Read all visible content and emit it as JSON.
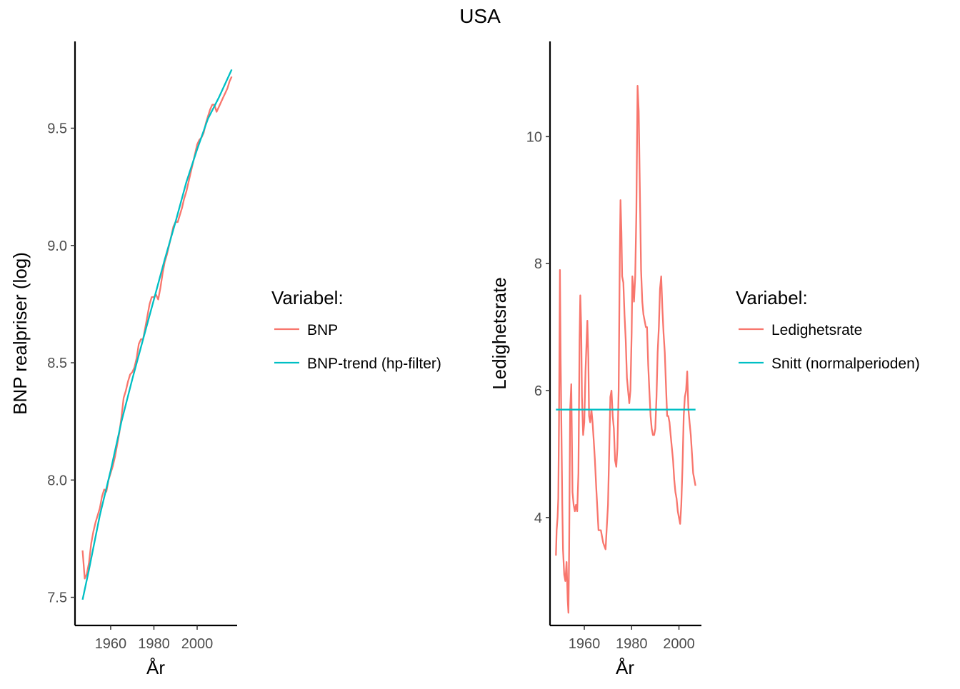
{
  "title": "USA",
  "colors": {
    "series1": "#F8766D",
    "series2": "#00BFC4",
    "axis": "#000000",
    "tick_text": "#4d4d4d"
  },
  "chart_data": [
    {
      "type": "line",
      "xlabel": "År",
      "ylabel": "BNP realpriser (log)",
      "xlim": [
        1943.5,
        2018.5
      ],
      "ylim": [
        7.38,
        9.87
      ],
      "x_ticks": [
        1960,
        1980,
        2000
      ],
      "y_ticks": [
        7.5,
        8.0,
        8.5,
        9.0,
        9.5
      ],
      "x_tick_labels": [
        "1960",
        "1980",
        "2000"
      ],
      "y_tick_labels": [
        "7.5",
        "8.0",
        "8.5",
        "9.0",
        "9.5"
      ],
      "grid": false,
      "legend": {
        "title": "Variabel:",
        "position": "right"
      },
      "series": [
        {
          "name": "BNP",
          "color": "#F8766D",
          "x": [
            1947,
            1948,
            1949,
            1950,
            1951,
            1952,
            1953,
            1954,
            1955,
            1956,
            1957,
            1958,
            1959,
            1960,
            1961,
            1962,
            1963,
            1964,
            1965,
            1966,
            1967,
            1968,
            1969,
            1970,
            1971,
            1972,
            1973,
            1974,
            1975,
            1976,
            1977,
            1978,
            1979,
            1980,
            1981,
            1982,
            1983,
            1984,
            1985,
            1986,
            1987,
            1988,
            1989,
            1990,
            1991,
            1992,
            1993,
            1994,
            1995,
            1996,
            1997,
            1998,
            1999,
            2000,
            2001,
            2002,
            2003,
            2004,
            2005,
            2006,
            2007,
            2008,
            2009,
            2010,
            2011,
            2012,
            2013,
            2014,
            2015,
            2016
          ],
          "values": [
            7.7,
            7.58,
            7.6,
            7.65,
            7.73,
            7.78,
            7.82,
            7.85,
            7.88,
            7.93,
            7.96,
            7.95,
            8.0,
            8.03,
            8.06,
            8.1,
            8.15,
            8.2,
            8.27,
            8.35,
            8.38,
            8.42,
            8.45,
            8.46,
            8.48,
            8.52,
            8.58,
            8.6,
            8.6,
            8.65,
            8.7,
            8.75,
            8.78,
            8.78,
            8.79,
            8.77,
            8.82,
            8.88,
            8.93,
            8.96,
            9.0,
            9.04,
            9.08,
            9.1,
            9.1,
            9.13,
            9.16,
            9.2,
            9.23,
            9.27,
            9.31,
            9.35,
            9.39,
            9.43,
            9.45,
            9.46,
            9.48,
            9.52,
            9.55,
            9.58,
            9.6,
            9.6,
            9.57,
            9.59,
            9.61,
            9.63,
            9.65,
            9.67,
            9.7,
            9.72
          ]
        },
        {
          "name": "BNP-trend (hp-filter)",
          "color": "#00BFC4",
          "x": [
            1947,
            1950,
            1955,
            1960,
            1965,
            1970,
            1975,
            1980,
            1985,
            1990,
            1995,
            2000,
            2005,
            2010,
            2016
          ],
          "values": [
            7.49,
            7.62,
            7.85,
            8.04,
            8.25,
            8.43,
            8.6,
            8.77,
            8.94,
            9.1,
            9.27,
            9.41,
            9.54,
            9.63,
            9.75
          ]
        }
      ]
    },
    {
      "type": "line",
      "xlabel": "År",
      "ylabel": "Ledighetsrate",
      "xlim": [
        1945.5,
        2009.5
      ],
      "ylim": [
        2.3,
        11.5
      ],
      "x_ticks": [
        1960,
        1980,
        2000
      ],
      "y_ticks": [
        4,
        6,
        8,
        10
      ],
      "x_tick_labels": [
        "1960",
        "1980",
        "2000"
      ],
      "y_tick_labels": [
        "4",
        "6",
        "8",
        "10"
      ],
      "grid": false,
      "legend": {
        "title": "Variabel:",
        "position": "right"
      },
      "series": [
        {
          "name": "Ledighetsrate",
          "color": "#F8766D",
          "x": [
            1948,
            1948.3,
            1948.7,
            1949,
            1949.3,
            1949.7,
            1950,
            1950.3,
            1950.7,
            1951,
            1951.5,
            1952,
            1952.5,
            1953,
            1953.3,
            1953.6,
            1954,
            1954.5,
            1955,
            1955.5,
            1956,
            1956.5,
            1957,
            1957.5,
            1958,
            1958.3,
            1958.7,
            1959,
            1959.5,
            1960,
            1960.5,
            1961,
            1961.3,
            1961.7,
            1962,
            1962.5,
            1963,
            1963.5,
            1964,
            1964.5,
            1965,
            1966,
            1967,
            1968,
            1969,
            1970,
            1970.5,
            1971,
            1971.5,
            1972,
            1972.5,
            1973,
            1973.5,
            1974,
            1974.5,
            1975,
            1975.3,
            1975.7,
            1976,
            1976.5,
            1977,
            1977.5,
            1978,
            1978.5,
            1979,
            1979.5,
            1980,
            1980.3,
            1980.7,
            1981,
            1981.5,
            1982,
            1982.5,
            1983,
            1983.5,
            1984,
            1984.5,
            1985,
            1985.5,
            1986,
            1986.5,
            1987,
            1987.5,
            1988,
            1988.5,
            1989,
            1989.5,
            1990,
            1990.5,
            1991,
            1991.5,
            1992,
            1992.5,
            1993,
            1993.5,
            1994,
            1994.5,
            1995,
            1995.5,
            1996,
            1996.5,
            1997,
            1997.5,
            1998,
            1998.5,
            1999,
            1999.5,
            2000,
            2000.5,
            2001,
            2001.5,
            2002,
            2002.5,
            2003,
            2003.5,
            2004,
            2004.5,
            2005,
            2005.5,
            2006,
            2006.5,
            2007
          ],
          "values": [
            3.4,
            3.8,
            4.0,
            4.3,
            5.5,
            7.9,
            6.5,
            5.5,
            4.2,
            3.5,
            3.1,
            3.0,
            3.3,
            2.7,
            2.5,
            3.5,
            5.7,
            6.1,
            4.4,
            4.2,
            4.1,
            4.2,
            4.1,
            4.7,
            6.8,
            7.5,
            7.0,
            5.9,
            5.3,
            5.5,
            6.3,
            6.8,
            7.1,
            6.5,
            5.6,
            5.5,
            5.7,
            5.5,
            5.2,
            4.9,
            4.5,
            3.8,
            3.8,
            3.6,
            3.5,
            4.2,
            5.0,
            5.9,
            6.0,
            5.6,
            5.4,
            4.9,
            4.8,
            5.1,
            6.0,
            8.1,
            9.0,
            8.5,
            7.8,
            7.7,
            7.2,
            6.8,
            6.2,
            6.0,
            5.8,
            6.0,
            6.9,
            7.8,
            7.6,
            7.4,
            7.8,
            8.8,
            10.8,
            10.4,
            9.1,
            7.9,
            7.4,
            7.2,
            7.1,
            7.0,
            7.0,
            6.4,
            6.0,
            5.6,
            5.4,
            5.3,
            5.3,
            5.4,
            5.9,
            6.6,
            7.0,
            7.6,
            7.8,
            7.3,
            6.9,
            6.6,
            6.1,
            5.6,
            5.6,
            5.5,
            5.3,
            5.1,
            4.9,
            4.6,
            4.4,
            4.3,
            4.1,
            4.0,
            3.9,
            4.2,
            4.8,
            5.6,
            5.9,
            6.0,
            6.3,
            5.7,
            5.5,
            5.3,
            5.0,
            4.7,
            4.6,
            4.5
          ]
        },
        {
          "name": "Snitt (normalperioden)",
          "color": "#00BFC4",
          "x": [
            1948,
            2007
          ],
          "values": [
            5.7,
            5.7
          ]
        }
      ]
    }
  ]
}
